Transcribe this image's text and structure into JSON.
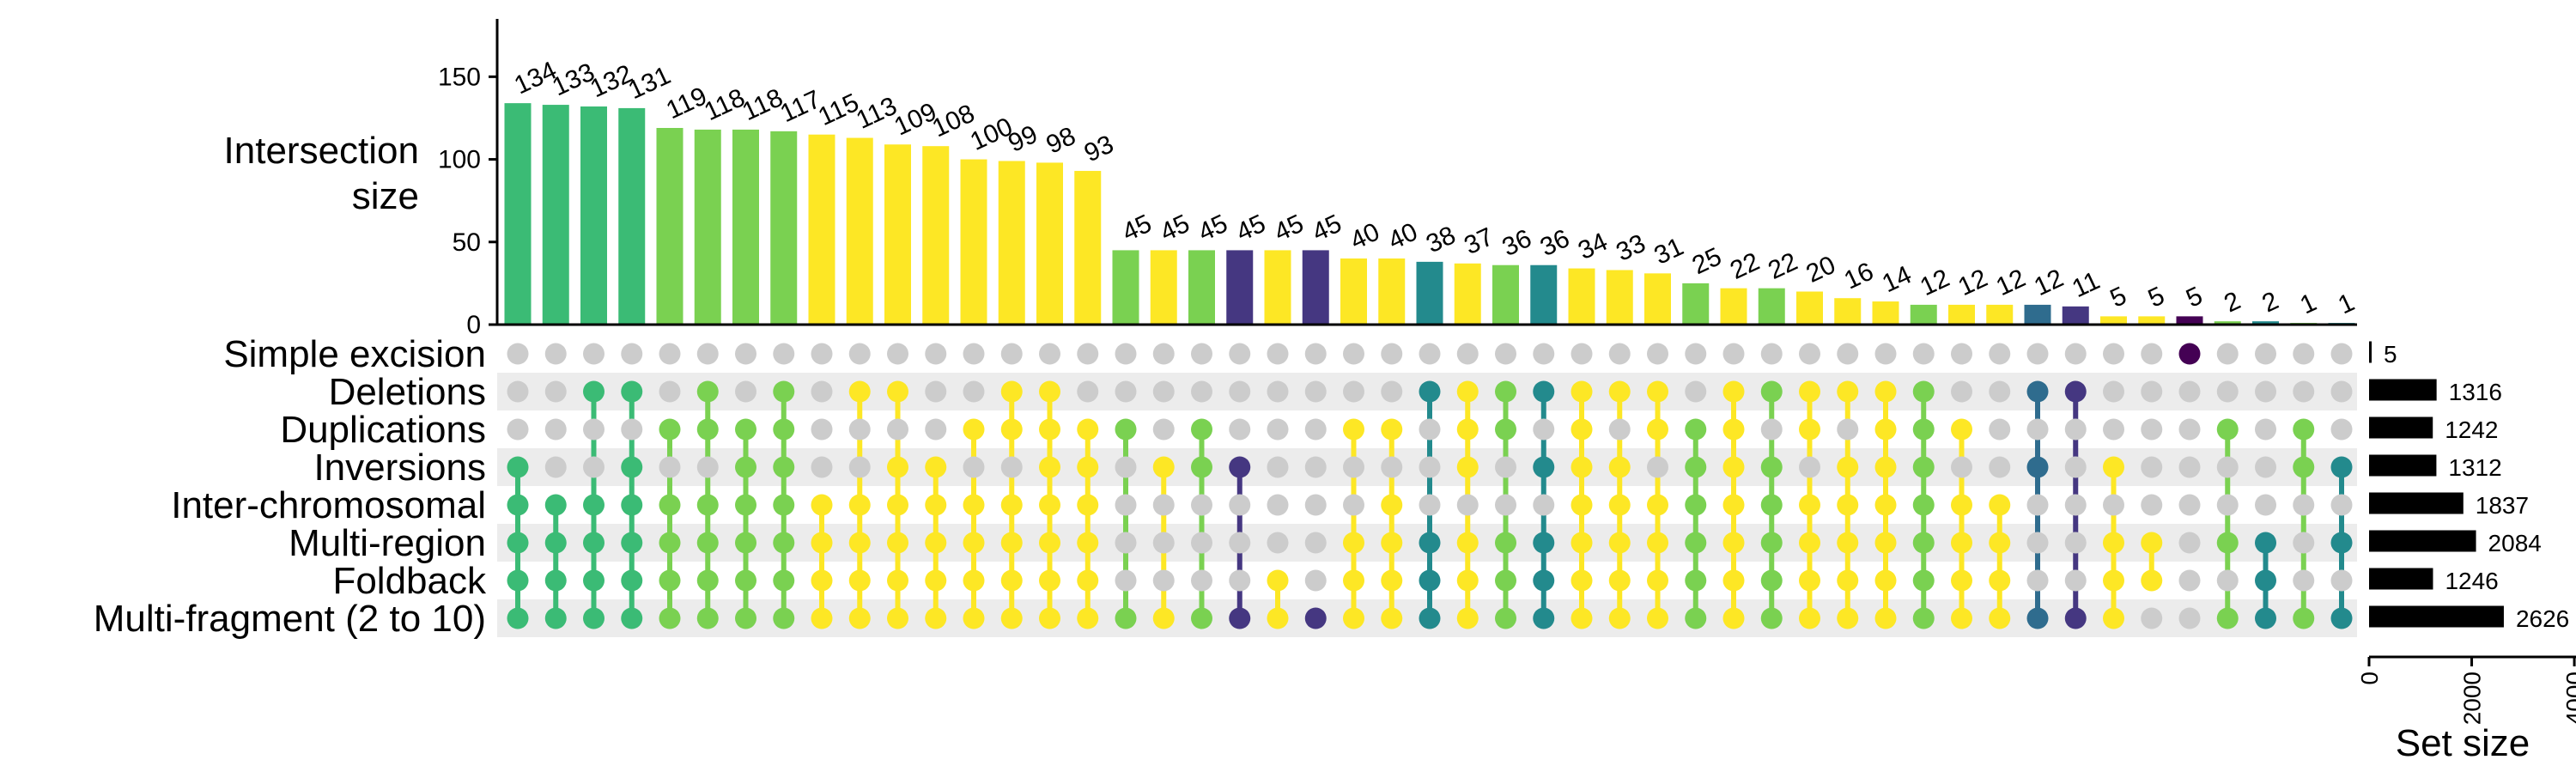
{
  "chart_data": {
    "type": "upset",
    "y_axis_label_line1": "Intersection",
    "y_axis_label_line2": "size",
    "y_ticks": [
      "0",
      "50",
      "100",
      "150"
    ],
    "y_tick_values": [
      0,
      50,
      100,
      150
    ],
    "ylim": [
      0,
      185
    ],
    "set_size_label": "Set size",
    "set_size_ticks": [
      "0",
      "2000",
      "4000"
    ],
    "set_size_tick_values": [
      0,
      2000,
      4000
    ],
    "set_size_lim": [
      0,
      4300
    ],
    "sets": [
      {
        "name": "Simple excision",
        "size": 5,
        "size_label": "5"
      },
      {
        "name": "Deletions",
        "size": 1316,
        "size_label": "1316"
      },
      {
        "name": "Duplications",
        "size": 1242,
        "size_label": "1242"
      },
      {
        "name": "Inversions",
        "size": 1312,
        "size_label": "1312"
      },
      {
        "name": "Inter-chromosomal",
        "size": 1837,
        "size_label": "1837"
      },
      {
        "name": "Multi-region",
        "size": 2084,
        "size_label": "2084"
      },
      {
        "name": "Foldback",
        "size": 1246,
        "size_label": "1246"
      },
      {
        "name": "Multi-fragment (2 to 10)",
        "size": 2626,
        "size_label": "2626"
      }
    ],
    "inactive_dot_color": "#cccccc",
    "stripe_color": "#ececec",
    "palette": {
      "1": "#440154",
      "2": "#453781",
      "3": "#2f6c8e",
      "4": "#238a8d",
      "5": "#3bbb75",
      "6": "#7ad151",
      "7": "#fde725"
    },
    "intersections": [
      {
        "value": 134,
        "label": "134",
        "sets": [
          3,
          4,
          5,
          6,
          7
        ],
        "degree": 5
      },
      {
        "value": 133,
        "label": "133",
        "sets": [
          4,
          5,
          6,
          7
        ],
        "degree": 5
      },
      {
        "value": 132,
        "label": "132",
        "sets": [
          1,
          4,
          5,
          6,
          7
        ],
        "degree": 5
      },
      {
        "value": 131,
        "label": "131",
        "sets": [
          1,
          3,
          4,
          5,
          6,
          7
        ],
        "degree": 5
      },
      {
        "value": 119,
        "label": "119",
        "sets": [
          2,
          4,
          5,
          6,
          7
        ],
        "degree": 6
      },
      {
        "value": 118,
        "label": "118",
        "sets": [
          1,
          2,
          4,
          5,
          6,
          7
        ],
        "degree": 6
      },
      {
        "value": 118,
        "label": "118",
        "sets": [
          2,
          3,
          4,
          5,
          6,
          7
        ],
        "degree": 6
      },
      {
        "value": 117,
        "label": "117",
        "sets": [
          1,
          2,
          3,
          4,
          5,
          6,
          7
        ],
        "degree": 6
      },
      {
        "value": 115,
        "label": "115",
        "sets": [
          4,
          5,
          6,
          7
        ],
        "degree": 7
      },
      {
        "value": 113,
        "label": "113",
        "sets": [
          1,
          4,
          5,
          6,
          7
        ],
        "degree": 7
      },
      {
        "value": 109,
        "label": "109",
        "sets": [
          1,
          3,
          4,
          5,
          6,
          7
        ],
        "degree": 7
      },
      {
        "value": 108,
        "label": "108",
        "sets": [
          3,
          4,
          5,
          6,
          7
        ],
        "degree": 7
      },
      {
        "value": 100,
        "label": "100",
        "sets": [
          2,
          4,
          5,
          6,
          7
        ],
        "degree": 7
      },
      {
        "value": 99,
        "label": "99",
        "sets": [
          1,
          2,
          4,
          5,
          6,
          7
        ],
        "degree": 7
      },
      {
        "value": 98,
        "label": "98",
        "sets": [
          1,
          2,
          3,
          4,
          5,
          6,
          7
        ],
        "degree": 7
      },
      {
        "value": 93,
        "label": "93",
        "sets": [
          2,
          3,
          4,
          5,
          6,
          7
        ],
        "degree": 7
      },
      {
        "value": 45,
        "label": "45",
        "sets": [
          2,
          7
        ],
        "degree": 6
      },
      {
        "value": 45,
        "label": "45",
        "sets": [
          3,
          7
        ],
        "degree": 7
      },
      {
        "value": 45,
        "label": "45",
        "sets": [
          2,
          3,
          7
        ],
        "degree": 6
      },
      {
        "value": 45,
        "label": "45",
        "sets": [
          3,
          7
        ],
        "degree": 2
      },
      {
        "value": 45,
        "label": "45",
        "sets": [
          6,
          7
        ],
        "degree": 7
      },
      {
        "value": 45,
        "label": "45",
        "sets": [
          7
        ],
        "degree": 2
      },
      {
        "value": 40,
        "label": "40",
        "sets": [
          2,
          5,
          6,
          7
        ],
        "degree": 7
      },
      {
        "value": 40,
        "label": "40",
        "sets": [
          2,
          4,
          5,
          6,
          7
        ],
        "degree": 7
      },
      {
        "value": 38,
        "label": "38",
        "sets": [
          1,
          5,
          6,
          7
        ],
        "degree": 4
      },
      {
        "value": 37,
        "label": "37",
        "sets": [
          1,
          2,
          3,
          5,
          6,
          7
        ],
        "degree": 7
      },
      {
        "value": 36,
        "label": "36",
        "sets": [
          1,
          2,
          5,
          6,
          7
        ],
        "degree": 6
      },
      {
        "value": 36,
        "label": "36",
        "sets": [
          1,
          3,
          5,
          6,
          7
        ],
        "degree": 4
      },
      {
        "value": 34,
        "label": "34",
        "sets": [
          1,
          2,
          3,
          4,
          5,
          6,
          7
        ],
        "degree": 7
      },
      {
        "value": 33,
        "label": "33",
        "sets": [
          1,
          3,
          4,
          5,
          6,
          7
        ],
        "degree": 7
      },
      {
        "value": 31,
        "label": "31",
        "sets": [
          1,
          2,
          4,
          5,
          6,
          7
        ],
        "degree": 7
      },
      {
        "value": 25,
        "label": "25",
        "sets": [
          2,
          3,
          4,
          5,
          6,
          7
        ],
        "degree": 6
      },
      {
        "value": 22,
        "label": "22",
        "sets": [
          1,
          2,
          3,
          4,
          5,
          6,
          7
        ],
        "degree": 7
      },
      {
        "value": 22,
        "label": "22",
        "sets": [
          1,
          3,
          4,
          5,
          6,
          7
        ],
        "degree": 6
      },
      {
        "value": 20,
        "label": "20",
        "sets": [
          1,
          2,
          4,
          5,
          6,
          7
        ],
        "degree": 7
      },
      {
        "value": 16,
        "label": "16",
        "sets": [
          1,
          3,
          4,
          5,
          6,
          7
        ],
        "degree": 7
      },
      {
        "value": 14,
        "label": "14",
        "sets": [
          1,
          2,
          3,
          4,
          5,
          6,
          7
        ],
        "degree": 7
      },
      {
        "value": 12,
        "label": "12",
        "sets": [
          1,
          2,
          3,
          4,
          5,
          6,
          7
        ],
        "degree": 6
      },
      {
        "value": 12,
        "label": "12",
        "sets": [
          2,
          4,
          5,
          6,
          7
        ],
        "degree": 7
      },
      {
        "value": 12,
        "label": "12",
        "sets": [
          4,
          5,
          6,
          7
        ],
        "degree": 7
      },
      {
        "value": 12,
        "label": "12",
        "sets": [
          1,
          3,
          7
        ],
        "degree": 3
      },
      {
        "value": 11,
        "label": "11",
        "sets": [
          1,
          7
        ],
        "degree": 2
      },
      {
        "value": 5,
        "label": "5",
        "sets": [
          3,
          5,
          6,
          7
        ],
        "degree": 7
      },
      {
        "value": 5,
        "label": "5",
        "sets": [
          5,
          6
        ],
        "degree": 7
      },
      {
        "value": 5,
        "label": "5",
        "sets": [
          0
        ],
        "degree": 1
      },
      {
        "value": 2,
        "label": "2",
        "sets": [
          2,
          5,
          7
        ],
        "degree": 6
      },
      {
        "value": 2,
        "label": "2",
        "sets": [
          5,
          6,
          7
        ],
        "degree": 4
      },
      {
        "value": 1,
        "label": "1",
        "sets": [
          2,
          3,
          7
        ],
        "degree": 6
      },
      {
        "value": 1,
        "label": "1",
        "sets": [
          3,
          5,
          7
        ],
        "degree": 4
      }
    ]
  }
}
